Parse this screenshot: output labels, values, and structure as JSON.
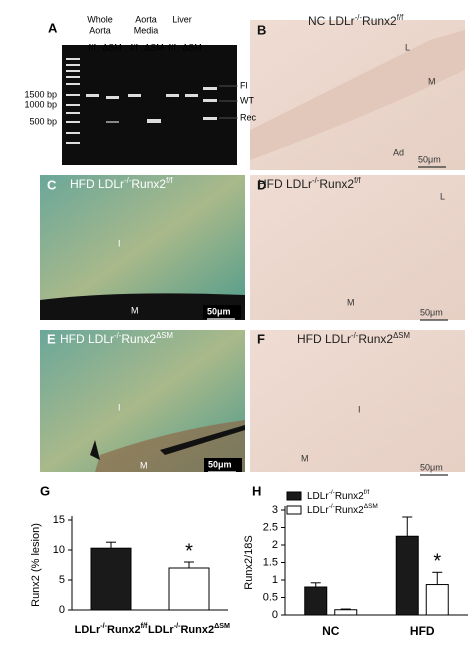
{
  "panels": {
    "A": {
      "label": "A",
      "groups": [
        [
          "Whole",
          "Aorta"
        ],
        [
          "Aorta",
          "Media"
        ],
        [
          "Liver"
        ]
      ],
      "lanes": [
        "f/f",
        "ΔSM",
        "f/f",
        "ΔSM",
        "f/f",
        "ΔSM"
      ],
      "ladder": [
        "1500 bp",
        "1000 bp",
        "500 bp"
      ],
      "bands": [
        "Fl",
        "WT",
        "Rec"
      ]
    },
    "B": {
      "label": "B",
      "title": [
        "NC LDLr",
        "-/-",
        "Runx2",
        "f/f"
      ],
      "annotations": [
        "L",
        "M",
        "Ad"
      ],
      "scale": "50μm"
    },
    "C": {
      "label": "C",
      "title": [
        "HFD LDLr",
        "-/-",
        "Runx2",
        "f/f"
      ],
      "annotations": [
        "I",
        "M"
      ],
      "scale": "50μm"
    },
    "D": {
      "label": "D",
      "title": [
        "HFD LDLr",
        "-/-",
        "Runx2",
        "f/f"
      ],
      "annotations": [
        "L",
        "M"
      ],
      "scale": "50μm"
    },
    "E": {
      "label": "E",
      "title": [
        "HFD LDLr",
        "-/-",
        "Runx2",
        "ΔSM"
      ],
      "annotations": [
        "I",
        "M"
      ],
      "scale": "50μm"
    },
    "F": {
      "label": "F",
      "title": [
        "HFD LDLr",
        "-/-",
        "Runx2",
        "ΔSM"
      ],
      "annotations": [
        "I",
        "M"
      ],
      "scale": "50μm"
    }
  },
  "chart_data": [
    {
      "type": "bar",
      "panel_label": "G",
      "y_label": "Runx2 (% lesion)",
      "categories": [
        [
          "LDLr",
          "-/-",
          "Runx2",
          "f/f"
        ],
        [
          "LDLr",
          "-/-",
          "Runx2",
          "ΔSM"
        ]
      ],
      "series": [
        {
          "values": [
            10.3,
            7.0
          ],
          "errors": [
            1.0,
            1.0
          ],
          "colors": [
            "#1a1a1a",
            "#ffffff"
          ]
        }
      ],
      "ylim": [
        0,
        15
      ],
      "yticks": [
        0,
        5,
        10,
        15
      ],
      "annotation": "*"
    },
    {
      "type": "bar",
      "panel_label": "H",
      "y_label": "Runx2/18S",
      "categories": [
        "NC",
        "HFD"
      ],
      "series": [
        {
          "name": [
            "LDLr",
            "-/-",
            "Runx2",
            "f/f"
          ],
          "color": "#1a1a1a",
          "values": [
            0.8,
            2.25
          ],
          "errors": [
            0.12,
            0.55
          ]
        },
        {
          "name": [
            "LDLr",
            "-/-",
            "Runx2",
            "ΔSM"
          ],
          "color": "#ffffff",
          "values": [
            0.15,
            0.87
          ],
          "errors": [
            0.02,
            0.35
          ]
        }
      ],
      "ylim": [
        0,
        3
      ],
      "yticks": [
        0,
        0.5,
        1,
        1.5,
        2,
        2.5,
        3
      ],
      "annotation": "*",
      "legend": "top-left"
    }
  ]
}
